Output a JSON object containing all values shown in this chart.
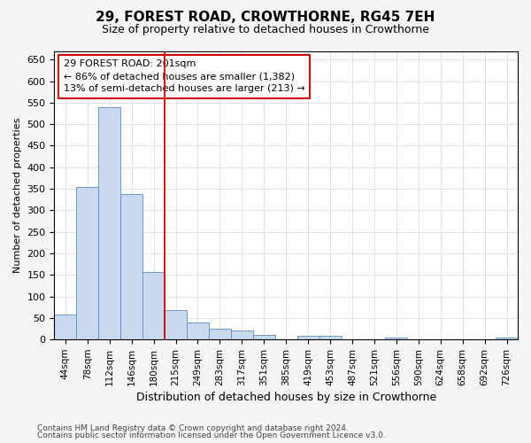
{
  "title1": "29, FOREST ROAD, CROWTHORNE, RG45 7EH",
  "title2": "Size of property relative to detached houses in Crowthorne",
  "xlabel": "Distribution of detached houses by size in Crowthorne",
  "ylabel": "Number of detached properties",
  "categories": [
    "44sqm",
    "78sqm",
    "112sqm",
    "146sqm",
    "180sqm",
    "215sqm",
    "249sqm",
    "283sqm",
    "317sqm",
    "351sqm",
    "385sqm",
    "419sqm",
    "453sqm",
    "487sqm",
    "521sqm",
    "556sqm",
    "590sqm",
    "624sqm",
    "658sqm",
    "692sqm",
    "726sqm"
  ],
  "values": [
    58,
    355,
    540,
    338,
    157,
    68,
    40,
    25,
    20,
    10,
    0,
    9,
    9,
    0,
    0,
    4,
    0,
    0,
    0,
    0,
    4
  ],
  "bar_color": "#c9d9ef",
  "bar_edge_color": "#5b8cc8",
  "vline_x": 4.5,
  "vline_color": "#cc0000",
  "annotation_line1": "29 FOREST ROAD: 201sqm",
  "annotation_line2": "← 86% of detached houses are smaller (1,382)",
  "annotation_line3": "13% of semi-detached houses are larger (213) →",
  "annotation_box_color": "#ffffff",
  "annotation_box_edge": "#cc0000",
  "ylim": [
    0,
    670
  ],
  "yticks": [
    0,
    50,
    100,
    150,
    200,
    250,
    300,
    350,
    400,
    450,
    500,
    550,
    600,
    650
  ],
  "footer1": "Contains HM Land Registry data © Crown copyright and database right 2024.",
  "footer2": "Contains public sector information licensed under the Open Government Licence v3.0.",
  "bg_color": "#f5f5f5",
  "plot_bg_color": "#ffffff",
  "grid_color": "#d0d8e8",
  "title1_fontsize": 11,
  "title2_fontsize": 9
}
